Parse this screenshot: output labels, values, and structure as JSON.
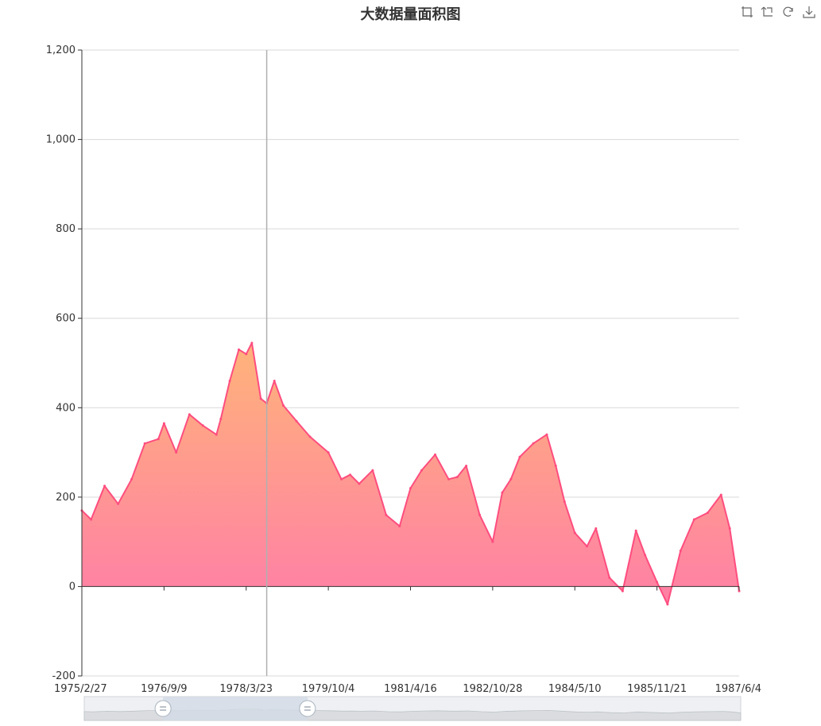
{
  "page": {
    "title": "大数据量面积图"
  },
  "toolbox": [
    {
      "name": "zoom-in-icon"
    },
    {
      "name": "zoom-reset-icon"
    },
    {
      "name": "restore-icon"
    },
    {
      "name": "save-image-icon"
    }
  ],
  "colors": {
    "line": "#ff4d7f",
    "area_top": "#ffb37a",
    "area_bottom": "#ff7fa6",
    "axis": "#333333",
    "grid": "#d9d9d9",
    "pointer": "#b0b0b0",
    "datazoom_fill": "#d2dbe5",
    "datazoom_bg": "#eef0f3"
  },
  "chart_data": {
    "type": "area",
    "title": "大数据量面积图",
    "xlabel": "",
    "ylabel": "",
    "x_start": "1975/2/27",
    "x_end": "1987/6/4",
    "x_tick_labels": [
      "1975/2/27",
      "1976/9/9",
      "1978/3/23",
      "1979/10/4",
      "1981/4/16",
      "1982/10/28",
      "1984/5/10",
      "1985/11/21",
      "1987/6/4"
    ],
    "y_ticks": [
      -200,
      0,
      200,
      400,
      600,
      800,
      1000,
      1200
    ],
    "y_tick_labels": [
      "-200",
      "0",
      "200",
      "400",
      "600",
      "800",
      "1,000",
      "1,200"
    ],
    "ylim": [
      -200,
      1200
    ],
    "grid": true,
    "legend": "none",
    "crosshair_x": "1978/8/10",
    "datazoom": {
      "start": "1975/2/27",
      "end": "1987/6/4",
      "handle_start_pct": 12,
      "handle_end_pct": 34
    },
    "series": [
      {
        "x": [
          "1975/2/27",
          "1975/5/1",
          "1975/8/1",
          "1975/11/1",
          "1976/2/1",
          "1976/5/1",
          "1976/8/1",
          "1976/9/9",
          "1976/12/1",
          "1977/3/1",
          "1977/6/1",
          "1977/9/1",
          "1977/10/1",
          "1977/12/1",
          "1978/2/1",
          "1978/3/23",
          "1978/5/1",
          "1978/7/1",
          "1978/8/10",
          "1978/10/1",
          "1978/12/1",
          "1979/3/1",
          "1979/6/1",
          "1979/10/4",
          "1980/1/1",
          "1980/3/1",
          "1980/5/1",
          "1980/8/1",
          "1980/11/1",
          "1981/2/1",
          "1981/4/16",
          "1981/7/1",
          "1981/10/1",
          "1982/1/1",
          "1982/3/1",
          "1982/5/1",
          "1982/8/1",
          "1982/10/28",
          "1983/1/1",
          "1983/3/1",
          "1983/5/1",
          "1983/8/1",
          "1983/11/1",
          "1984/1/1",
          "1984/3/1",
          "1984/5/10",
          "1984/8/1",
          "1984/10/1",
          "1985/1/1",
          "1985/4/1",
          "1985/7/1",
          "1985/9/1",
          "1985/11/21",
          "1986/2/1",
          "1986/5/1",
          "1986/8/1",
          "1986/11/1",
          "1987/2/1",
          "1987/4/1",
          "1987/6/4"
        ],
        "values": [
          170,
          150,
          225,
          185,
          240,
          320,
          330,
          365,
          300,
          385,
          360,
          340,
          375,
          460,
          530,
          520,
          545,
          420,
          410,
          460,
          405,
          370,
          335,
          300,
          240,
          250,
          230,
          260,
          160,
          135,
          220,
          260,
          295,
          240,
          245,
          270,
          160,
          100,
          210,
          240,
          290,
          320,
          340,
          270,
          190,
          120,
          90,
          130,
          20,
          -10,
          125,
          70,
          10,
          -40,
          80,
          150,
          165,
          205,
          130,
          -10
        ]
      }
    ]
  }
}
